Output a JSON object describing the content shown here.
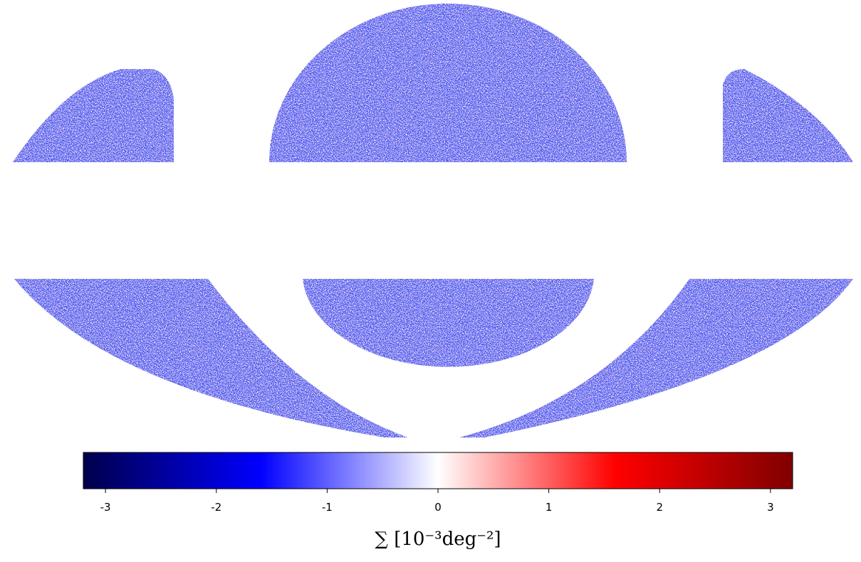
{
  "chart_data": {
    "type": "map",
    "colorbar_label": "∑ [10⁻³deg⁻²]",
    "colorlim": [
      -3.2,
      3.2
    ],
    "colorticks": [
      -3,
      -2,
      -1,
      0,
      1,
      2,
      3
    ],
    "colormap_colors": [
      "#00004c",
      "#0000ff",
      "#ffffff",
      "#ff0000",
      "#800000"
    ]
  }
}
